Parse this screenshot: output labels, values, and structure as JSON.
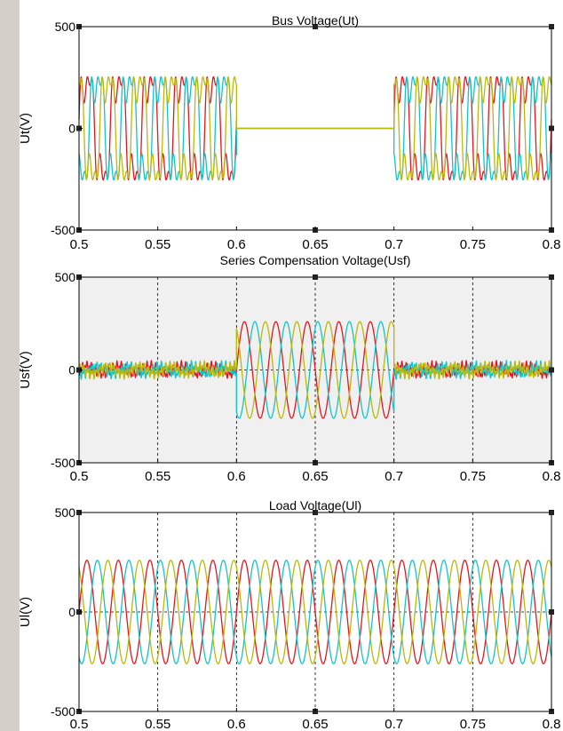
{
  "chart_data": [
    {
      "type": "line",
      "title": "Bus Voltage(Ut)",
      "xlabel": "",
      "ylabel": "Ut(V)",
      "xlim": [
        0.5,
        0.8
      ],
      "ylim": [
        -500,
        500
      ],
      "xticks": [
        "0.5",
        "0.55",
        "0.6",
        "0.65",
        "0.7",
        "0.75",
        "0.8"
      ],
      "yticks": [
        "500",
        "0",
        "-500"
      ],
      "grid": false,
      "background": "#ffffff",
      "fundamental_hz": 50,
      "harmonic_ratio": 0.35,
      "series": [
        {
          "color": "#e6141e",
          "phase_deg": 0,
          "segments": [
            {
              "x": [
                0.5,
                0.6
              ],
              "amplitude": 300
            },
            {
              "x": [
                0.6,
                0.7
              ],
              "amplitude": 0
            },
            {
              "x": [
                0.7,
                0.8
              ],
              "amplitude": 300
            }
          ]
        },
        {
          "color": "#12c4c8",
          "phase_deg": -120,
          "segments": [
            {
              "x": [
                0.5,
                0.6
              ],
              "amplitude": 300
            },
            {
              "x": [
                0.6,
                0.7
              ],
              "amplitude": 0
            },
            {
              "x": [
                0.7,
                0.8
              ],
              "amplitude": 300
            }
          ]
        },
        {
          "color": "#b9b90a",
          "phase_deg": 120,
          "segments": [
            {
              "x": [
                0.5,
                0.6
              ],
              "amplitude": 300
            },
            {
              "x": [
                0.6,
                0.7
              ],
              "amplitude": 0
            },
            {
              "x": [
                0.7,
                0.8
              ],
              "amplitude": 300
            }
          ]
        }
      ]
    },
    {
      "type": "line",
      "title": "Series Compensation Voltage(Usf)",
      "xlabel": "",
      "ylabel": "Usf(V)",
      "xlim": [
        0.5,
        0.8
      ],
      "ylim": [
        -500,
        500
      ],
      "xticks": [
        "0.5",
        "0.55",
        "0.6",
        "0.65",
        "0.7",
        "0.75",
        "0.8"
      ],
      "yticks": [
        "500",
        "0",
        "-500"
      ],
      "grid": true,
      "background": "#f0f0f0",
      "fundamental_hz": 50,
      "noise_amplitude": 50,
      "series": [
        {
          "color": "#e6141e",
          "phase_deg": 0,
          "segments": [
            {
              "x": [
                0.5,
                0.6
              ],
              "amplitude": 50,
              "noisy": true
            },
            {
              "x": [
                0.6,
                0.7
              ],
              "amplitude": 260
            },
            {
              "x": [
                0.7,
                0.8
              ],
              "amplitude": 50,
              "noisy": true
            }
          ]
        },
        {
          "color": "#12c4c8",
          "phase_deg": -120,
          "segments": [
            {
              "x": [
                0.5,
                0.6
              ],
              "amplitude": 50,
              "noisy": true
            },
            {
              "x": [
                0.6,
                0.7
              ],
              "amplitude": 260
            },
            {
              "x": [
                0.7,
                0.8
              ],
              "amplitude": 50,
              "noisy": true
            }
          ]
        },
        {
          "color": "#b9b90a",
          "phase_deg": 120,
          "segments": [
            {
              "x": [
                0.5,
                0.6
              ],
              "amplitude": 50,
              "noisy": true
            },
            {
              "x": [
                0.6,
                0.7
              ],
              "amplitude": 260
            },
            {
              "x": [
                0.7,
                0.8
              ],
              "amplitude": 50,
              "noisy": true
            }
          ]
        }
      ]
    },
    {
      "type": "line",
      "title": "Load Voltage(Ul)",
      "xlabel": "",
      "ylabel": "Ul(V)",
      "xlim": [
        0.5,
        0.8
      ],
      "ylim": [
        -500,
        500
      ],
      "xticks": [
        "0.5",
        "0.55",
        "0.6",
        "0.65",
        "0.7",
        "0.75",
        "0.8"
      ],
      "yticks": [
        "500",
        "0",
        "-500"
      ],
      "grid": true,
      "background": "#ffffff",
      "fundamental_hz": 50,
      "series": [
        {
          "color": "#e6141e",
          "phase_deg": 0,
          "segments": [
            {
              "x": [
                0.5,
                0.8
              ],
              "amplitude": 260
            }
          ]
        },
        {
          "color": "#12c4c8",
          "phase_deg": -120,
          "segments": [
            {
              "x": [
                0.5,
                0.8
              ],
              "amplitude": 260
            }
          ]
        },
        {
          "color": "#b9b90a",
          "phase_deg": 120,
          "segments": [
            {
              "x": [
                0.5,
                0.8
              ],
              "amplitude": 260
            }
          ]
        }
      ]
    }
  ]
}
